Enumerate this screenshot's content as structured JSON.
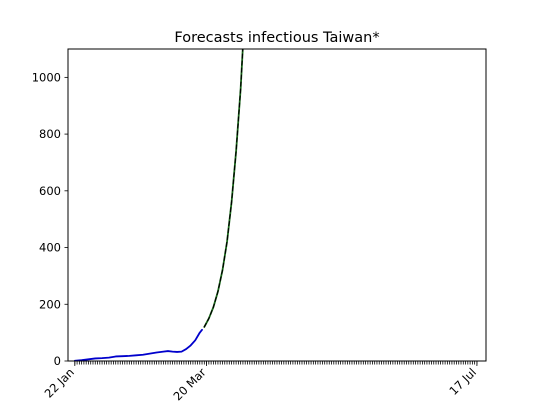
{
  "chart_data": {
    "type": "line",
    "title": "Forecasts infectious Taiwan*",
    "xlabel": "",
    "ylabel": "",
    "x_range": [
      "2020-01-19",
      "2020-07-21"
    ],
    "ylim": [
      0,
      1100
    ],
    "y_ticks": [
      0,
      200,
      400,
      600,
      800,
      1000
    ],
    "x_tick_labels": [
      {
        "date": "2020-01-22",
        "label": "22 Jan"
      },
      {
        "date": "2020-03-20",
        "label": "20 Mar"
      },
      {
        "date": "2020-07-17",
        "label": "17 Jul"
      }
    ],
    "minor_ticks": {
      "from": "2020-01-22",
      "to": "2020-07-17",
      "every_days": 1
    },
    "grid": false,
    "legend": "none",
    "series": [
      {
        "color": "#0000cc",
        "style": "solid",
        "points": [
          [
            "2020-01-22",
            1
          ],
          [
            "2020-01-25",
            3
          ],
          [
            "2020-01-28",
            6
          ],
          [
            "2020-01-31",
            9
          ],
          [
            "2020-02-03",
            10
          ],
          [
            "2020-02-06",
            12
          ],
          [
            "2020-02-09",
            16
          ],
          [
            "2020-02-12",
            17
          ],
          [
            "2020-02-15",
            18
          ],
          [
            "2020-02-18",
            20
          ],
          [
            "2020-02-21",
            22
          ],
          [
            "2020-02-24",
            26
          ],
          [
            "2020-02-27",
            30
          ],
          [
            "2020-03-01",
            33
          ],
          [
            "2020-03-03",
            35
          ],
          [
            "2020-03-05",
            33
          ],
          [
            "2020-03-07",
            32
          ],
          [
            "2020-03-09",
            33
          ],
          [
            "2020-03-11",
            42
          ],
          [
            "2020-03-13",
            55
          ],
          [
            "2020-03-15",
            73
          ],
          [
            "2020-03-17",
            100
          ],
          [
            "2020-03-18",
            110
          ]
        ]
      },
      {
        "color": "#1a6b1a",
        "style": "solid",
        "points": [
          [
            "2020-03-19",
            120
          ],
          [
            "2020-03-21",
            150
          ],
          [
            "2020-03-23",
            190
          ],
          [
            "2020-03-25",
            245
          ],
          [
            "2020-03-27",
            320
          ],
          [
            "2020-03-29",
            420
          ],
          [
            "2020-03-31",
            560
          ],
          [
            "2020-04-02",
            740
          ],
          [
            "2020-04-04",
            960
          ],
          [
            "2020-04-05",
            1110
          ]
        ]
      },
      {
        "color": "#000000",
        "style": "dashed",
        "points": [
          [
            "2020-03-19",
            120
          ],
          [
            "2020-03-21",
            150
          ],
          [
            "2020-03-23",
            190
          ],
          [
            "2020-03-25",
            245
          ],
          [
            "2020-03-27",
            320
          ],
          [
            "2020-03-29",
            420
          ],
          [
            "2020-03-31",
            560
          ],
          [
            "2020-04-02",
            740
          ],
          [
            "2020-04-04",
            960
          ],
          [
            "2020-04-05",
            1110
          ]
        ]
      }
    ]
  }
}
